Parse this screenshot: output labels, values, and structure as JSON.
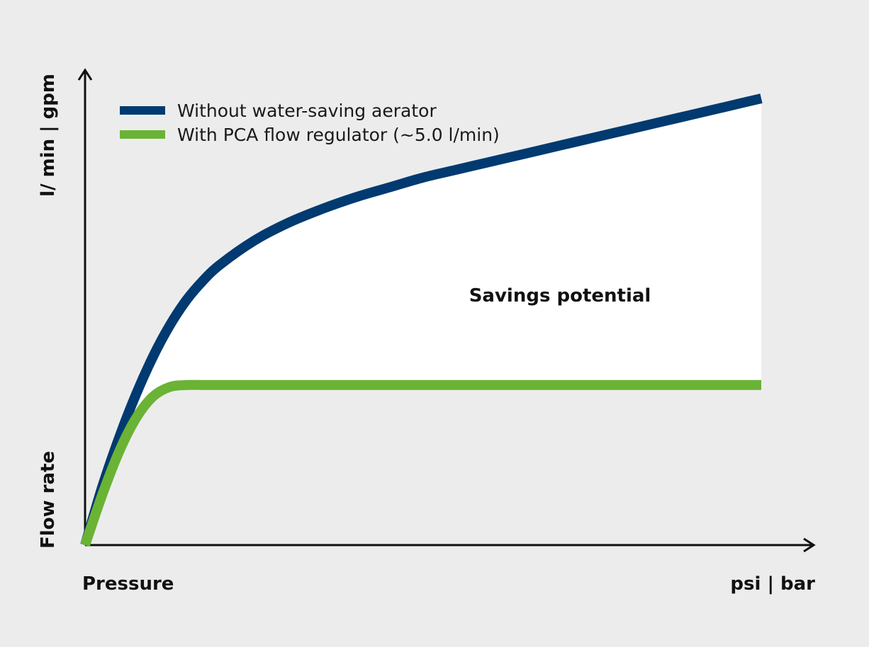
{
  "chart_data": {
    "type": "line",
    "title": "",
    "xlabel": "Pressure",
    "xunit": "psi | bar",
    "ylabel": "Flow rate",
    "yunit": "l/ min | gpm",
    "grid": false,
    "legend_position": "top-left",
    "x": [
      0,
      0.25,
      0.5,
      0.75,
      1,
      1.25,
      1.5,
      1.75,
      2,
      2.5,
      3,
      3.5,
      4,
      4.5,
      5,
      5.5,
      6,
      6.5,
      7,
      7.5,
      8,
      8.5,
      9,
      9.5,
      10
    ],
    "series": [
      {
        "name": "Without water-saving aerator",
        "color": "#003a70",
        "values": [
          0,
          1.45,
          2.7,
          3.8,
          4.75,
          5.55,
          6.2,
          6.7,
          7.1,
          7.7,
          8.15,
          8.5,
          8.8,
          9.05,
          9.3,
          9.5,
          9.7,
          9.9,
          10.1,
          10.3,
          10.5,
          10.7,
          10.9,
          11.1,
          11.3
        ]
      },
      {
        "name": "With PCA flow regulator (~5.0 l/min)",
        "color": "#6ab335",
        "values": [
          0,
          1.25,
          2.35,
          3.2,
          3.75,
          4.0,
          4.05,
          4.05,
          4.05,
          4.05,
          4.05,
          4.05,
          4.05,
          4.05,
          4.05,
          4.05,
          4.05,
          4.05,
          4.05,
          4.05,
          4.05,
          4.05,
          4.05,
          4.05,
          4.05
        ]
      }
    ],
    "xlim": [
      0,
      11
    ],
    "ylim": [
      0,
      12
    ],
    "annotations": [
      {
        "text": "Savings potential"
      }
    ]
  }
}
